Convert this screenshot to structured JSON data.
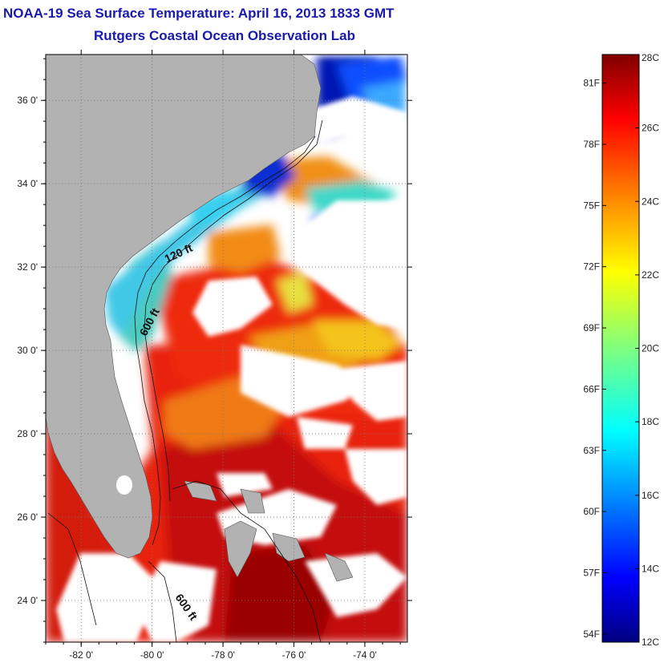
{
  "header": {
    "title": "NOAA-19 Sea Surface Temperature:  April 16, 2013 1833 GMT",
    "subtitle": "Rutgers Coastal Ocean Observation Lab"
  },
  "map": {
    "lon_range": [
      -83,
      -72.8
    ],
    "lat_range": [
      23,
      37.1
    ],
    "lon_ticks": [
      {
        "value": -82,
        "label": "-82 0'"
      },
      {
        "value": -80,
        "label": "-80 0'"
      },
      {
        "value": -78,
        "label": "-78 0'"
      },
      {
        "value": -76,
        "label": "-76 0'"
      },
      {
        "value": -74,
        "label": "-74 0'"
      }
    ],
    "lat_ticks": [
      {
        "value": 24,
        "label": "24 0'"
      },
      {
        "value": 26,
        "label": "26 0'"
      },
      {
        "value": 28,
        "label": "28 0'"
      },
      {
        "value": 30,
        "label": "30 0'"
      },
      {
        "value": 32,
        "label": "32 0'"
      },
      {
        "value": 34,
        "label": "34 0'"
      },
      {
        "value": 36,
        "label": "36 0'"
      }
    ],
    "contour_labels": {
      "c120": "120 ft",
      "c600a": "600 ft",
      "c600b": "600 ft"
    },
    "colors": {
      "land": "#b2b2b2",
      "cloud": "#ffffff",
      "grid": "#777777"
    }
  },
  "colorbar": {
    "range_c": [
      12,
      28
    ],
    "celsius_labels": [
      "28C",
      "26C",
      "24C",
      "22C",
      "20C",
      "18C",
      "16C",
      "14C",
      "12C"
    ],
    "fahrenheit_labels": [
      "81F",
      "78F",
      "75F",
      "72F",
      "69F",
      "66F",
      "63F",
      "60F",
      "57F",
      "54F"
    ],
    "colormap": "jet"
  }
}
